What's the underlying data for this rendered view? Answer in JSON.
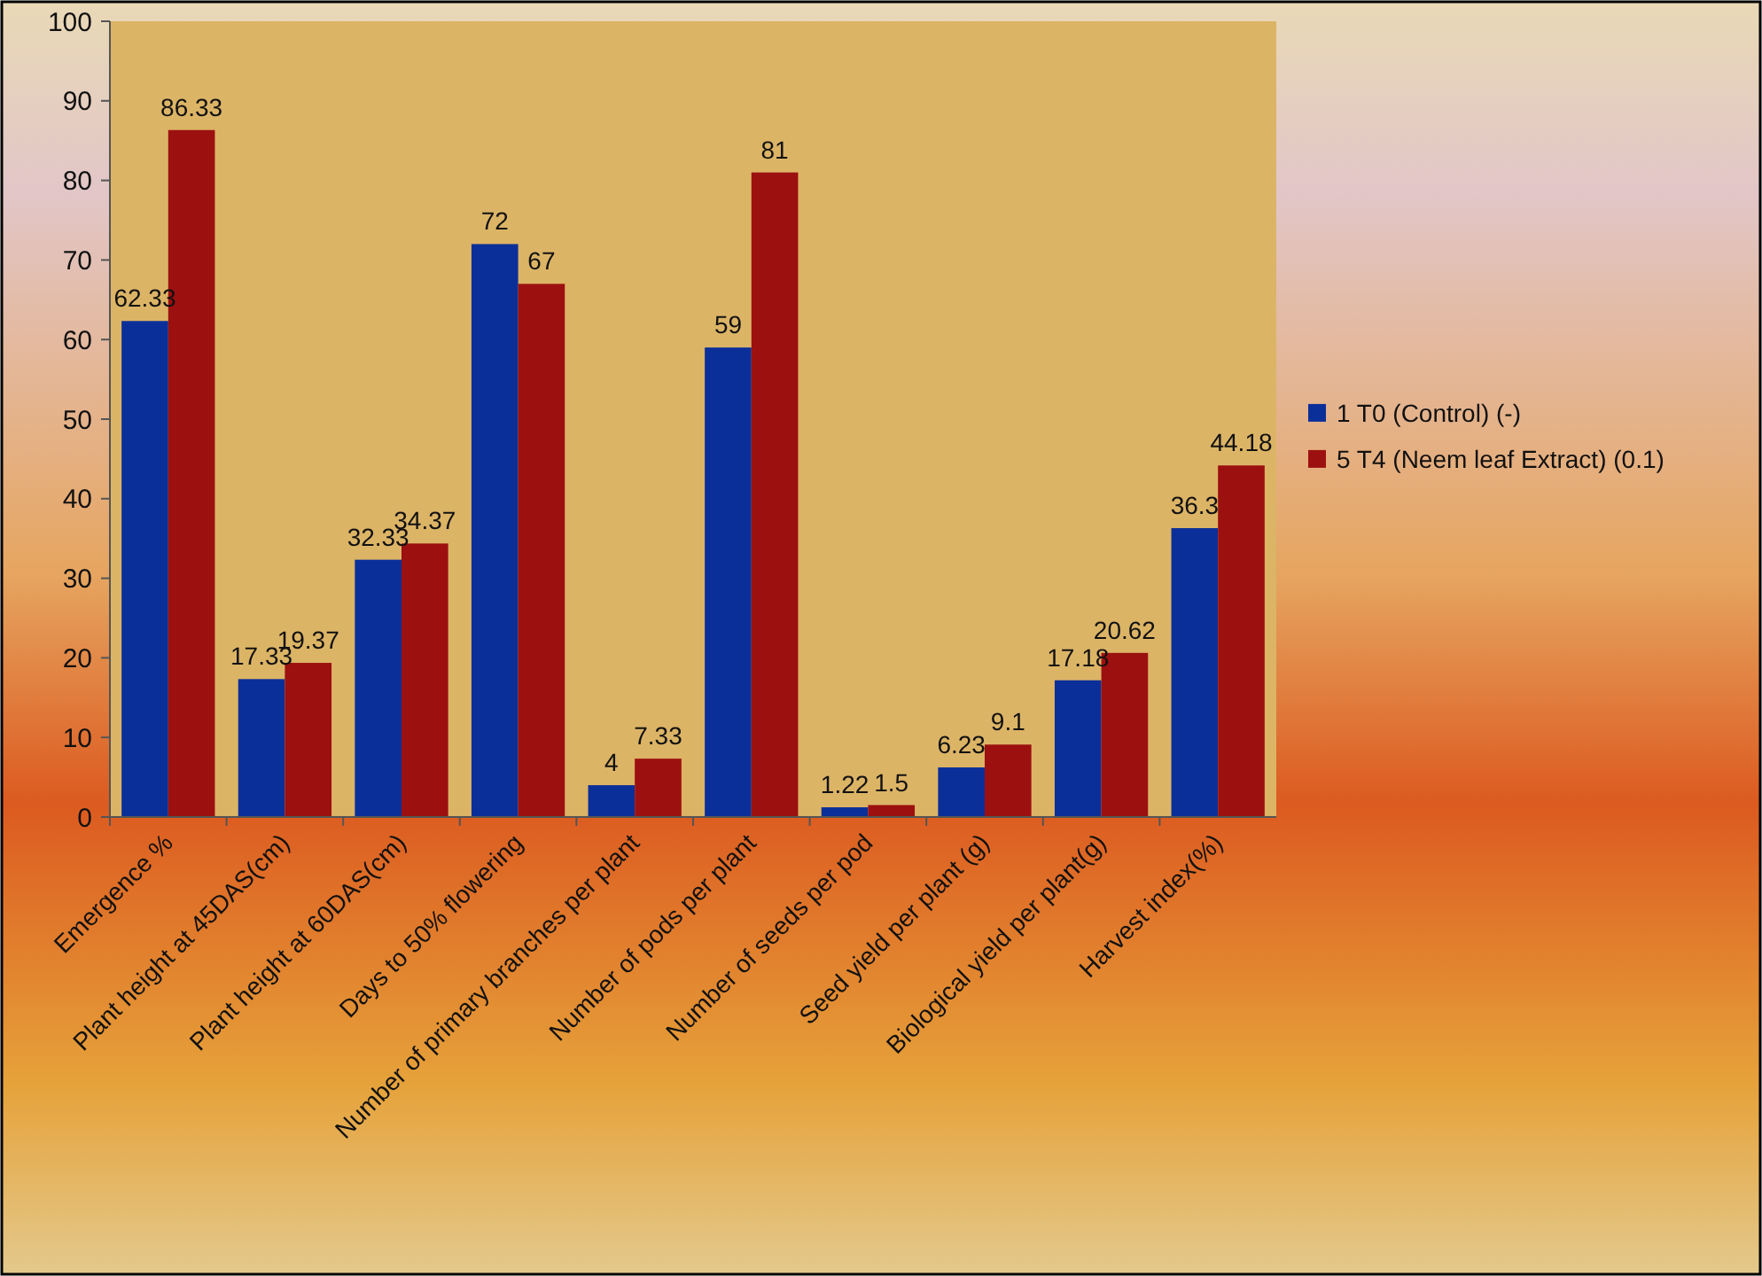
{
  "chart_data": {
    "type": "bar",
    "categories": [
      "Emergence %",
      "Plant height at 45DAS(cm)",
      "Plant height at 60DAS(cm)",
      "Days to 50% flowering",
      "Number of primary branches per plant",
      "Number of pods per plant",
      "Number of seeds per pod",
      "Seed yield per plant (g)",
      "Biological yield per plant(g)",
      "Harvest index(%)"
    ],
    "series": [
      {
        "name": "1 T0 (Control) (-)",
        "color": "#0b2f99",
        "values": [
          62.33,
          17.33,
          32.33,
          72,
          4,
          59,
          1.22,
          6.23,
          17.18,
          36.3
        ]
      },
      {
        "name": "5 T4 (Neem leaf Extract) (0.1)",
        "color": "#9c1010",
        "values": [
          86.33,
          19.37,
          34.37,
          67,
          7.33,
          81,
          1.5,
          9.1,
          20.62,
          44.18
        ]
      }
    ],
    "ylim": [
      0,
      100
    ],
    "yticks": [
      0,
      10,
      20,
      30,
      40,
      50,
      60,
      70,
      80,
      90,
      100
    ],
    "data_labels": true,
    "legend": "right",
    "grid": false
  }
}
